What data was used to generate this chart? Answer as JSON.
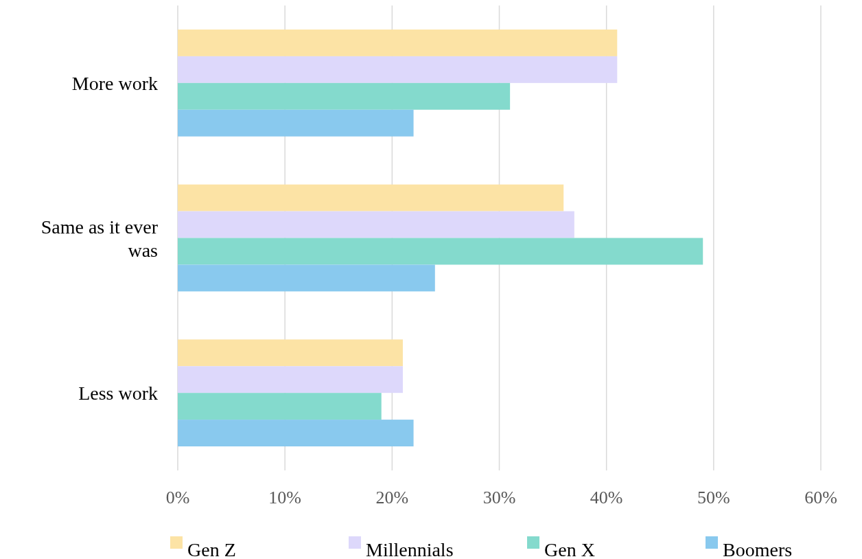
{
  "chart_data": {
    "type": "bar",
    "orientation": "horizontal",
    "categories": [
      "More work",
      "Same as it ever was",
      "Less work"
    ],
    "series": [
      {
        "name": "Gen Z",
        "color": "#fce3a5",
        "values": [
          41,
          36,
          21
        ]
      },
      {
        "name": "Millennials",
        "color": "#ddd8fb",
        "values": [
          41,
          37,
          21
        ]
      },
      {
        "name": "Gen X",
        "color": "#84dacd",
        "values": [
          31,
          49,
          19
        ]
      },
      {
        "name": "Boomers",
        "color": "#89c9ee",
        "values": [
          22,
          24,
          22
        ]
      }
    ],
    "xlim": [
      0,
      60
    ],
    "xticks": [
      {
        "value": 0,
        "label": "0%"
      },
      {
        "value": 10,
        "label": "10%"
      },
      {
        "value": 20,
        "label": "20%"
      },
      {
        "value": 30,
        "label": "30%"
      },
      {
        "value": 40,
        "label": "40%"
      },
      {
        "value": 50,
        "label": "50%"
      },
      {
        "value": 60,
        "label": "60%"
      }
    ],
    "grid": "x",
    "legend": "bottom"
  }
}
